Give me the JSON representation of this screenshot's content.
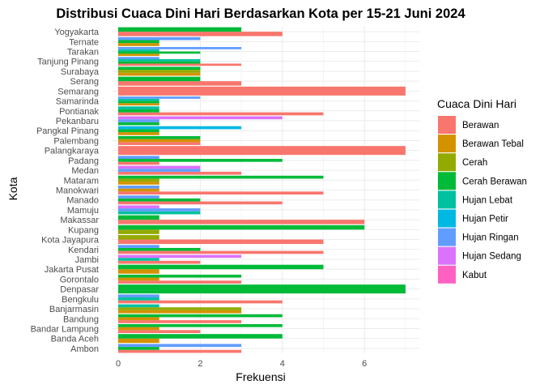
{
  "chart_data": {
    "type": "bar",
    "orientation": "horizontal",
    "title": "Distribusi Cuaca Dini Hari Berdasarkan Kota per 15-21 Juni 2024",
    "xlabel": "Frekuensi",
    "ylabel": "Kota",
    "xlim": [
      0,
      7.35
    ],
    "xticks": [
      0,
      2,
      4,
      6
    ],
    "grid": true,
    "legend_title": "Cuaca Dini Hari",
    "legend_position": "right",
    "categories": [
      "Yogyakarta",
      "Ternate",
      "Tarakan",
      "Tanjung Pinang",
      "Surabaya",
      "Serang",
      "Semarang",
      "Samarinda",
      "Pontianak",
      "Pekanbaru",
      "Pangkal Pinang",
      "Palembang",
      "Palangkaraya",
      "Padang",
      "Medan",
      "Mataram",
      "Manokwari",
      "Manado",
      "Mamuju",
      "Makassar",
      "Kupang",
      "Kota Jayapura",
      "Kendari",
      "Jambi",
      "Jakarta Pusat",
      "Gorontalo",
      "Denpasar",
      "Bengkulu",
      "Banjarmasin",
      "Bandung",
      "Bandar Lampung",
      "Banda Aceh",
      "Ambon"
    ],
    "series": [
      {
        "name": "Berawan",
        "color": "#F8766D"
      },
      {
        "name": "Berawan Tebal",
        "color": "#D39200"
      },
      {
        "name": "Cerah",
        "color": "#93AA00"
      },
      {
        "name": "Cerah Berawan",
        "color": "#00BA38"
      },
      {
        "name": "Hujan Lebat",
        "color": "#00C19F"
      },
      {
        "name": "Hujan Petir",
        "color": "#00B9E3"
      },
      {
        "name": "Hujan Ringan",
        "color": "#619CFF"
      },
      {
        "name": "Hujan Sedang",
        "color": "#DB72FB"
      },
      {
        "name": "Kabut",
        "color": "#FF61C3"
      }
    ],
    "values": {
      "Yogyakarta": {
        "Cerah Berawan": 3,
        "Berawan": 4
      },
      "Ternate": {
        "Hujan Ringan": 2,
        "Cerah Berawan": 1,
        "Berawan Tebal": 1
      },
      "Tarakan": {
        "Hujan Ringan": 3,
        "Hujan Lebat": 1,
        "Cerah Berawan": 2,
        "Berawan Tebal": 1
      },
      "Tanjung Pinang": {
        "Hujan Ringan": 1,
        "Hujan Lebat": 2,
        "Cerah Berawan": 2,
        "Berawan": 3
      },
      "Surabaya": {
        "Cerah Berawan": 2,
        "Cerah": 2,
        "Berawan Tebal": 2
      },
      "Serang": {
        "Cerah Berawan": 2,
        "Berawan": 3
      },
      "Semarang": {
        "Berawan": 7
      },
      "Samarinda": {
        "Hujan Ringan": 2,
        "Hujan Lebat": 1,
        "Cerah Berawan": 1,
        "Berawan Tebal": 1
      },
      "Pontianak": {
        "Hujan Lebat": 1,
        "Cerah Berawan": 1,
        "Berawan": 5
      },
      "Pekanbaru": {
        "Hujan Sedang": 4,
        "Hujan Ringan": 1,
        "Cerah Berawan": 1
      },
      "Pangkal Pinang": {
        "Hujan Petir": 3,
        "Cerah Berawan": 1,
        "Berawan Tebal": 1
      },
      "Palembang": {
        "Berawan": 2,
        "Cerah Berawan": 2,
        "Berawan Tebal": 2
      },
      "Palangkaraya": {
        "Berawan": 7
      },
      "Padang": {
        "Hujan Ringan": 1,
        "Cerah Berawan": 4,
        "Berawan": 1
      },
      "Medan": {
        "Hujan Ringan": 2,
        "Hujan Sedang": 2,
        "Berawan": 3
      },
      "Mataram": {
        "Berawan Tebal": 1,
        "Cerah Berawan": 5,
        "Cerah": 1
      },
      "Manokwari": {
        "Hujan Ringan": 1,
        "Berawan Tebal": 1,
        "Berawan": 5
      },
      "Manado": {
        "Hujan Ringan": 1,
        "Cerah Berawan": 2,
        "Berawan": 4
      },
      "Mamuju": {
        "Hujan Sedang": 1,
        "Hujan Ringan": 2,
        "Hujan Lebat": 2
      },
      "Makassar": {
        "Cerah Berawan": 1,
        "Berawan": 6
      },
      "Kupang": {
        "Cerah Berawan": 6,
        "Cerah": 1
      },
      "Kota Jayapura": {
        "Cerah": 1,
        "Berawan": 5
      },
      "Kendari": {
        "Hujan Ringan": 1,
        "Cerah Berawan": 2,
        "Berawan": 5
      },
      "Jambi": {
        "Hujan Sedang": 3,
        "Hujan Lebat": 1,
        "Berawan": 2
      },
      "Jakarta Pusat": {
        "Cerah Berawan": 5,
        "Berawan Tebal": 1
      },
      "Gorontalo": {
        "Cerah Berawan": 3,
        "Berawan Tebal": 1,
        "Berawan": 3
      },
      "Denpasar": {
        "Cerah Berawan": 7
      },
      "Bengkulu": {
        "Hujan Ringan": 1,
        "Hujan Lebat": 1,
        "Berawan": 4
      },
      "Banjarmasin": {
        "Hujan Lebat": 1,
        "Cerah": 3,
        "Berawan Tebal": 3
      },
      "Bandung": {
        "Cerah Berawan": 4,
        "Berawan Tebal": 1,
        "Berawan": 3
      },
      "Bandar Lampung": {
        "Cerah Berawan": 4,
        "Berawan Tebal": 1,
        "Berawan": 2
      },
      "Banda Aceh": {
        "Cerah Berawan": 4,
        "Berawan Tebal": 1
      },
      "Ambon": {
        "Hujan Ringan": 3,
        "Cerah Berawan": 1,
        "Berawan": 3
      }
    }
  }
}
